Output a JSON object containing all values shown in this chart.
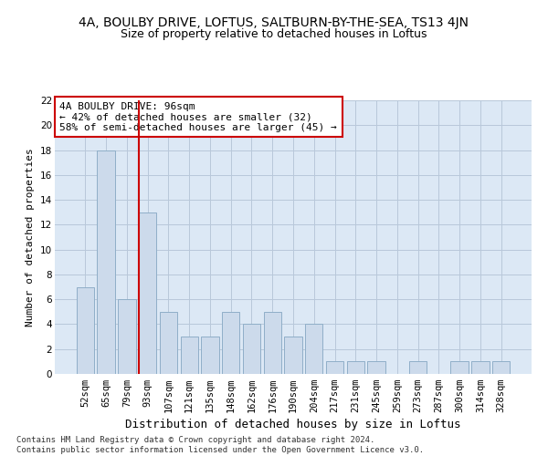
{
  "title": "4A, BOULBY DRIVE, LOFTUS, SALTBURN-BY-THE-SEA, TS13 4JN",
  "subtitle": "Size of property relative to detached houses in Loftus",
  "xlabel": "Distribution of detached houses by size in Loftus",
  "ylabel": "Number of detached properties",
  "categories": [
    "52sqm",
    "65sqm",
    "79sqm",
    "93sqm",
    "107sqm",
    "121sqm",
    "135sqm",
    "148sqm",
    "162sqm",
    "176sqm",
    "190sqm",
    "204sqm",
    "217sqm",
    "231sqm",
    "245sqm",
    "259sqm",
    "273sqm",
    "287sqm",
    "300sqm",
    "314sqm",
    "328sqm"
  ],
  "values": [
    7,
    18,
    6,
    13,
    5,
    3,
    3,
    5,
    4,
    5,
    3,
    4,
    1,
    1,
    1,
    0,
    1,
    0,
    1,
    1,
    1
  ],
  "bar_color": "#ccdaeb",
  "bar_edge_color": "#8faec8",
  "vline_color": "#cc0000",
  "annotation_text": "4A BOULBY DRIVE: 96sqm\n← 42% of detached houses are smaller (32)\n58% of semi-detached houses are larger (45) →",
  "annotation_box_color": "#ffffff",
  "annotation_box_edge": "#cc0000",
  "ylim": [
    0,
    22
  ],
  "yticks": [
    0,
    2,
    4,
    6,
    8,
    10,
    12,
    14,
    16,
    18,
    20,
    22
  ],
  "grid_color": "#b8c8da",
  "background_color": "#dce8f5",
  "footer": "Contains HM Land Registry data © Crown copyright and database right 2024.\nContains public sector information licensed under the Open Government Licence v3.0.",
  "title_fontsize": 10,
  "subtitle_fontsize": 9,
  "xlabel_fontsize": 9,
  "ylabel_fontsize": 8,
  "tick_fontsize": 7.5,
  "annotation_fontsize": 8,
  "footer_fontsize": 6.5
}
